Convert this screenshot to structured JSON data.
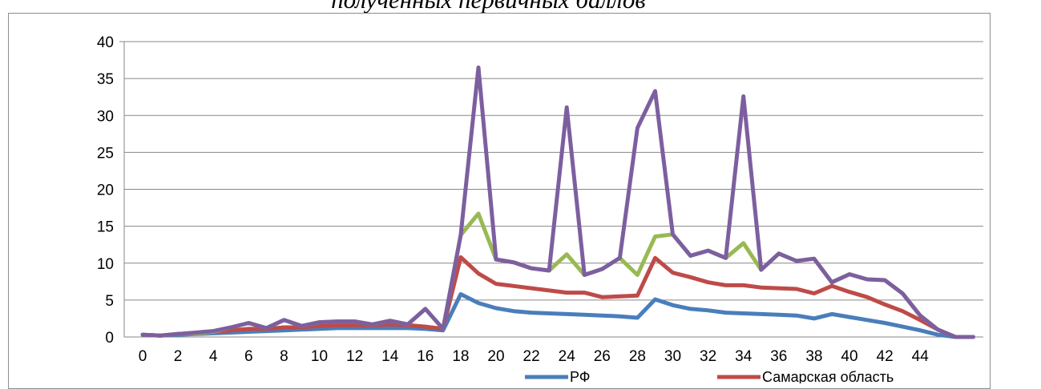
{
  "chart_data": {
    "type": "line",
    "title": "полученных первичных баллов",
    "ylim": [
      0,
      40
    ],
    "y_ticks": [
      "0",
      "5",
      "10",
      "15",
      "20",
      "25",
      "30",
      "35",
      "40"
    ],
    "x": [
      0,
      1,
      2,
      3,
      4,
      5,
      6,
      7,
      8,
      9,
      10,
      11,
      12,
      13,
      14,
      15,
      16,
      17,
      18,
      19,
      20,
      21,
      22,
      23,
      24,
      25,
      26,
      27,
      28,
      29,
      30,
      31,
      32,
      33,
      34,
      35,
      36,
      37,
      38,
      39,
      40,
      41,
      42,
      43,
      44,
      45,
      46,
      47
    ],
    "x_tick_labels": [
      "0",
      "2",
      "4",
      "6",
      "8",
      "10",
      "12",
      "14",
      "16",
      "18",
      "20",
      "22",
      "24",
      "26",
      "28",
      "30",
      "32",
      "34",
      "36",
      "38",
      "40",
      "42",
      "44"
    ],
    "grid": true,
    "legend_position": "bottom",
    "series": [
      {
        "name": "РФ",
        "color": "#4a7ebb",
        "values": [
          0.3,
          0.2,
          0.3,
          0.4,
          0.5,
          0.6,
          0.7,
          0.8,
          0.9,
          1.0,
          1.1,
          1.2,
          1.2,
          1.2,
          1.2,
          1.2,
          1.1,
          0.9,
          5.8,
          4.6,
          3.9,
          3.5,
          3.3,
          3.2,
          3.1,
          3.0,
          2.9,
          2.8,
          2.6,
          5.1,
          4.3,
          3.8,
          3.6,
          3.3,
          3.2,
          3.1,
          3.0,
          2.9,
          2.5,
          3.1,
          2.7,
          2.3,
          1.9,
          1.4,
          0.9,
          0.3,
          0.0,
          0.0
        ]
      },
      {
        "name": "Самарская область",
        "color": "#be4b48",
        "values": [
          0.3,
          0.2,
          0.4,
          0.5,
          0.7,
          0.9,
          1.1,
          1.1,
          1.3,
          1.3,
          1.5,
          1.6,
          1.6,
          1.6,
          1.7,
          1.6,
          1.4,
          1.1,
          10.8,
          8.6,
          7.2,
          6.9,
          6.6,
          6.3,
          6.0,
          6.0,
          5.4,
          5.5,
          5.6,
          10.7,
          8.7,
          8.1,
          7.4,
          7.0,
          7.0,
          6.7,
          6.6,
          6.5,
          5.9,
          6.9,
          6.1,
          5.4,
          4.4,
          3.5,
          2.3,
          1.0,
          0.0,
          0.0
        ]
      },
      {
        "name": "",
        "color": "#98b954",
        "values": [
          0.3,
          0.2,
          0.4,
          0.5,
          0.7,
          1.3,
          1.9,
          1.2,
          2.3,
          1.5,
          2.0,
          2.1,
          2.1,
          1.7,
          2.2,
          1.7,
          3.8,
          1.1,
          13.8,
          16.7,
          10.5,
          10.1,
          9.3,
          9.0,
          11.2,
          8.4,
          9.2,
          10.7,
          8.4,
          13.6,
          13.9,
          11.0,
          11.7,
          10.7,
          12.7,
          9.1,
          11.3,
          10.3,
          10.6,
          7.4,
          8.5,
          7.8,
          7.7,
          5.9,
          2.9,
          1.0,
          0.0,
          0.0
        ]
      },
      {
        "name": "",
        "color": "#7d5fa0",
        "values": [
          0.3,
          0.2,
          0.4,
          0.6,
          0.8,
          1.3,
          1.9,
          1.2,
          2.3,
          1.5,
          2.0,
          2.1,
          2.1,
          1.7,
          2.2,
          1.7,
          3.8,
          1.1,
          13.8,
          36.5,
          10.5,
          10.1,
          9.3,
          9.0,
          31.1,
          8.4,
          9.2,
          10.7,
          28.3,
          33.3,
          13.9,
          11.0,
          11.7,
          10.7,
          32.6,
          9.1,
          11.3,
          10.3,
          10.6,
          7.4,
          8.5,
          7.8,
          7.7,
          5.9,
          2.9,
          1.0,
          0.0,
          0.0
        ]
      }
    ]
  }
}
